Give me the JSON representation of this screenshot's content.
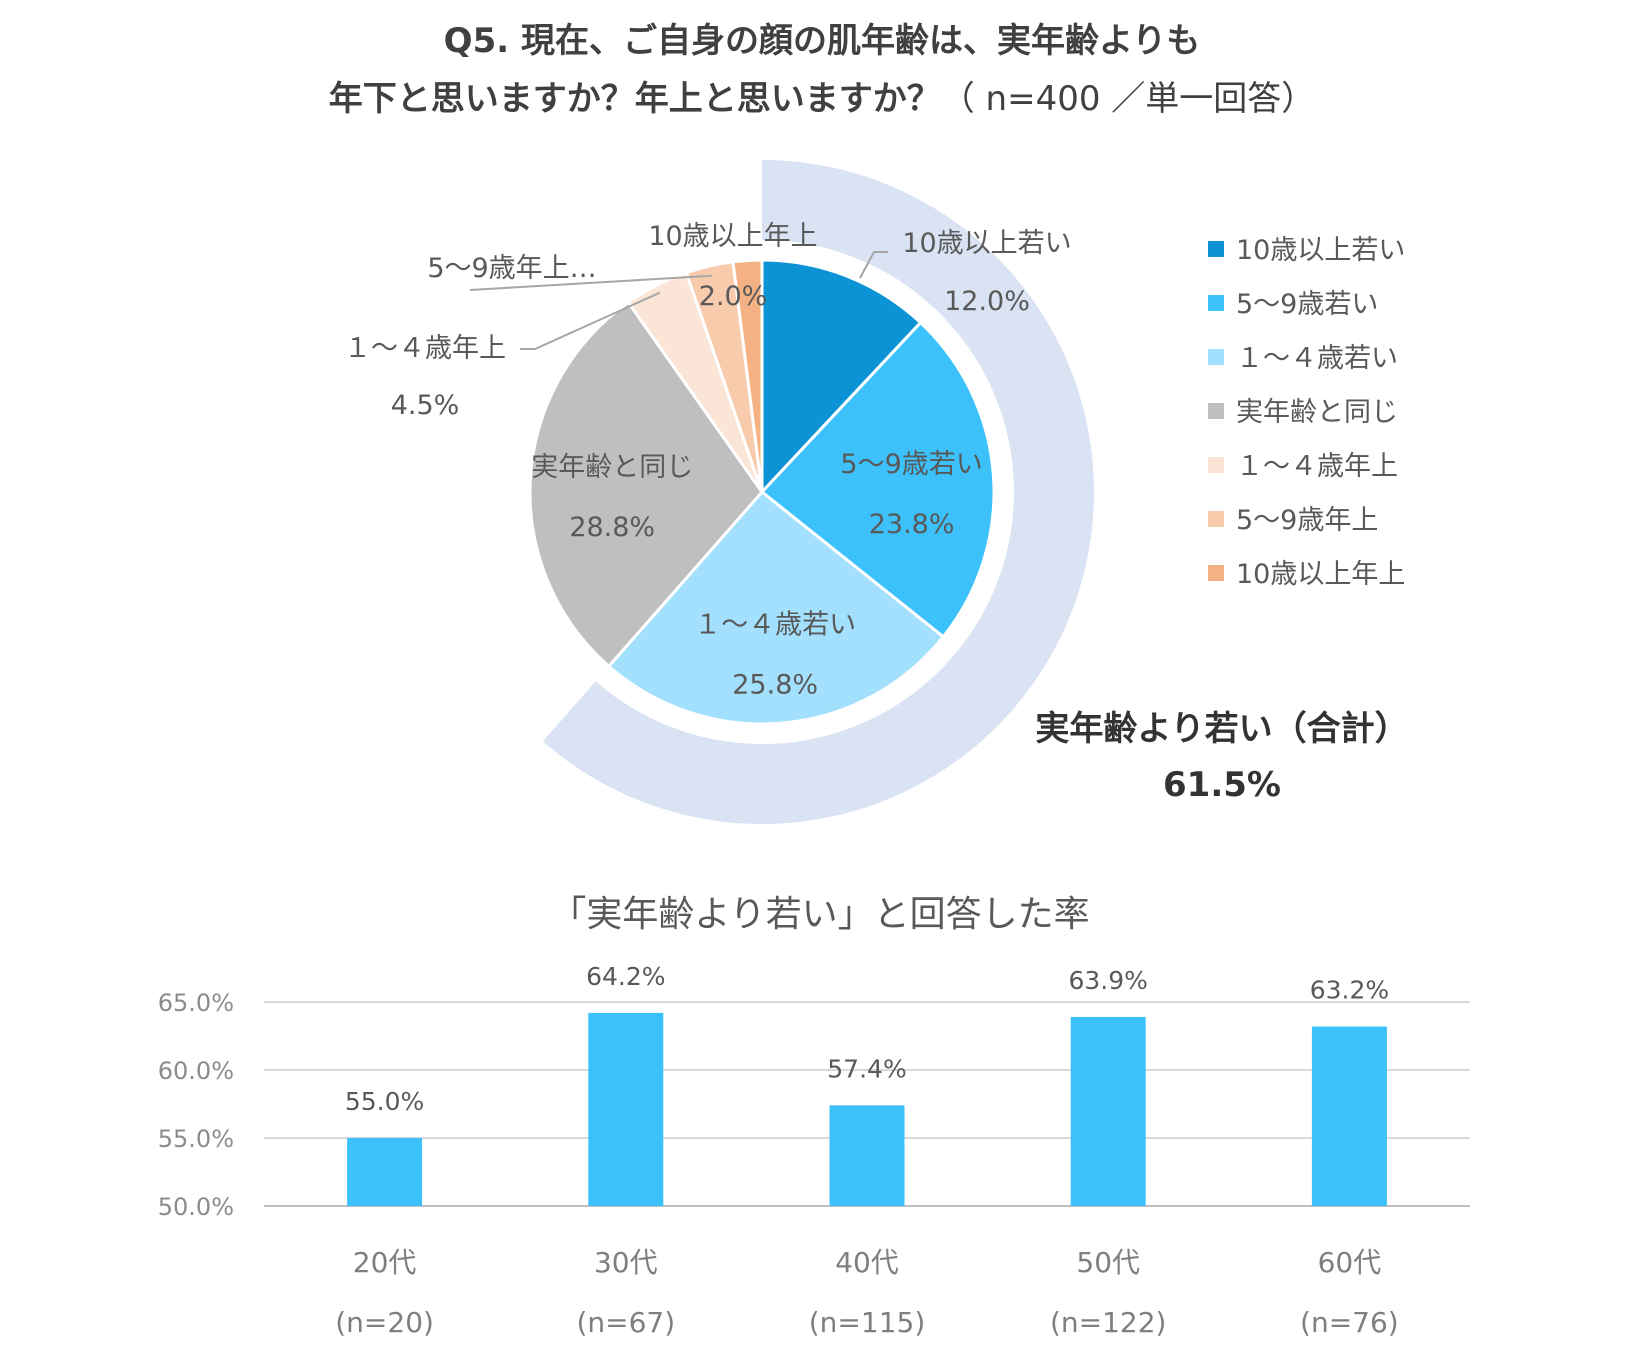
{
  "title": {
    "line1": "Q5. 現在、ご自身の顔の肌年齢は、実年齢よりも",
    "line2_bold": "年下と思いますか？年上と思いますか？",
    "line2_note": "（ n=400 ／単一回答）"
  },
  "pie_total": {
    "label": "実年齢より若い（合計）",
    "value_label": "61.5%",
    "value": 61.5
  },
  "bar_title": "「実年齢より若い」と回答した率",
  "chart_data": [
    {
      "type": "pie",
      "title": "",
      "categories": [
        "10歳以上若い",
        "5〜9歳若い",
        "１〜４歳若い",
        "実年齢と同じ",
        "１〜４歳年上",
        "5〜9歳年上",
        "10歳以上年上"
      ],
      "values": [
        12.0,
        23.8,
        25.8,
        28.8,
        4.5,
        3.3,
        2.0
      ],
      "legend": [
        "10歳以上若い",
        "5〜9歳若い",
        "１〜４歳若い",
        "実年齢と同じ",
        "１〜４歳年上",
        "5〜9歳年上",
        "10歳以上年上"
      ],
      "legend_position": "right",
      "slice_labels": [
        {
          "name": "10歳以上若い",
          "value": "12.0%"
        },
        {
          "name": "5〜9歳若い",
          "value": "23.8%"
        },
        {
          "name": "１〜４歳若い",
          "value": "25.8%"
        },
        {
          "name": "実年齢と同じ",
          "value": "28.8%"
        },
        {
          "name": "１〜４歳年上",
          "value": "4.5%"
        },
        {
          "name": "5〜9歳年上…",
          "value": ""
        },
        {
          "name": "10歳以上年上",
          "value": "2.0%"
        }
      ],
      "colors": [
        "#0b93d6",
        "#3cc1fb",
        "#a3e0fd",
        "#bfbfbf",
        "#fbe5d6",
        "#f8cbad",
        "#f4b183"
      ],
      "ring_color": "#dae3f3"
    },
    {
      "type": "bar",
      "title": "「実年齢より若い」と回答した率",
      "categories": [
        "20代",
        "30代",
        "40代",
        "50代",
        "60代"
      ],
      "category_sublabels": [
        "(n=20)",
        "(n=67)",
        "(n=115)",
        "(n=122)",
        "(n=76)"
      ],
      "values": [
        55.0,
        64.2,
        57.4,
        63.9,
        63.2
      ],
      "value_labels": [
        "55.0%",
        "64.2%",
        "57.4%",
        "63.9%",
        "63.2%"
      ],
      "ylim": [
        50,
        65
      ],
      "yticks": [
        50,
        55,
        60,
        65
      ],
      "ytick_labels": [
        "50.0%",
        "55.0%",
        "60.0%",
        "65.0%"
      ],
      "grid": true,
      "bar_color": "#3cc1fb",
      "xlabel": "",
      "ylabel": ""
    }
  ]
}
